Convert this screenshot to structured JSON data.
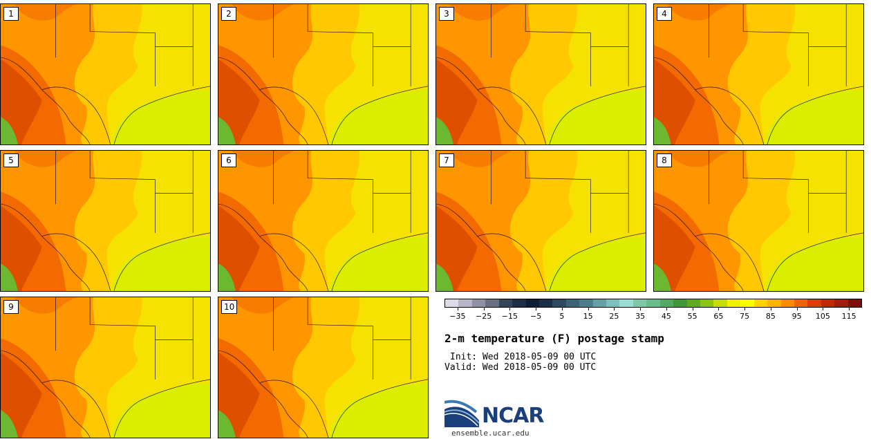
{
  "panels": [
    {
      "label": "1"
    },
    {
      "label": "2"
    },
    {
      "label": "3"
    },
    {
      "label": "4"
    },
    {
      "label": "5"
    },
    {
      "label": "6"
    },
    {
      "label": "7"
    },
    {
      "label": "8"
    },
    {
      "label": "9"
    },
    {
      "label": "10"
    }
  ],
  "colorbar": {
    "colors": [
      "#dcdce8",
      "#b6b6c6",
      "#8e92a2",
      "#6a7080",
      "#36445a",
      "#1e2e46",
      "#0e1c34",
      "#1a2e46",
      "#2c4a60",
      "#3c6476",
      "#4e7e8c",
      "#64a0a6",
      "#7cc0bc",
      "#98dcd2",
      "#7ec8a8",
      "#68bc8a",
      "#50aa60",
      "#3e9834",
      "#5eaa20",
      "#8cc414",
      "#c4dc08",
      "#f0f000",
      "#ffff00",
      "#ffd200",
      "#ffb400",
      "#ff8c00",
      "#f06400",
      "#dc3c00",
      "#c02800",
      "#a01c0c",
      "#7c1008"
    ],
    "tick_labels": [
      "−35",
      "−25",
      "−15",
      "−5",
      "5",
      "15",
      "25",
      "35",
      "45",
      "55",
      "65",
      "75",
      "85",
      "95",
      "105",
      "115"
    ],
    "tick_values": [
      -35,
      -25,
      -15,
      -5,
      5,
      15,
      25,
      35,
      45,
      55,
      65,
      75,
      85,
      95,
      105,
      115
    ],
    "min": -40,
    "max": 120
  },
  "title": "2-m temperature (F) postage stamp",
  "init_line": "Init: Wed 2018-05-09 00 UTC",
  "valid_line": "Valid: Wed 2018-05-09 00 UTC",
  "logo": {
    "text": "NCAR",
    "url": "ensemble.ucar.edu",
    "color": "#1b3f7a"
  },
  "map_colors": {
    "gulf": "#dcee00",
    "lowlands": "#f5e200",
    "plains": "#ffc800",
    "hot": "#ff9600",
    "hotter": "#f26a00",
    "hottest": "#d84a00",
    "mountain_green": "#6cb830",
    "boundary": "#000000"
  }
}
